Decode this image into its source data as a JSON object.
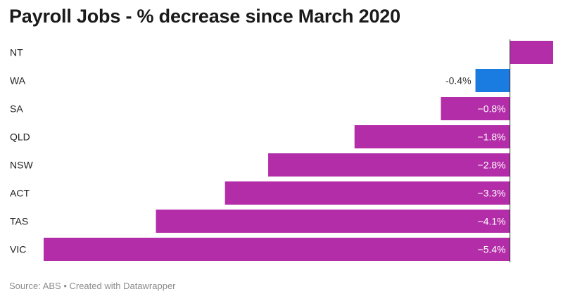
{
  "title": "Payroll Jobs - % decrease since March 2020",
  "source": "Source: ABS • Created with Datawrapper",
  "colors": {
    "default": "#b42da8",
    "highlight": "#1a7be0",
    "label_inside": "#ffffff",
    "label_outside": "#333333",
    "category": "#222222",
    "axis": "#333333"
  },
  "chart_data": {
    "type": "bar",
    "orientation": "horizontal",
    "title": "Payroll Jobs - % decrease since March 2020",
    "categories": [
      "NT",
      "WA",
      "SA",
      "QLD",
      "NSW",
      "ACT",
      "TAS",
      "VIC"
    ],
    "values": [
      0.5,
      -0.4,
      -0.8,
      -1.8,
      -2.8,
      -3.3,
      -4.1,
      -5.4
    ],
    "labels": [
      "",
      "-0.4%",
      "−0.8%",
      "−1.8%",
      "−2.8%",
      "−3.3%",
      "−4.1%",
      "−5.4%"
    ],
    "highlight": "WA",
    "xlim": [
      -5.4,
      0.5
    ],
    "grid": false,
    "legend": "none"
  }
}
